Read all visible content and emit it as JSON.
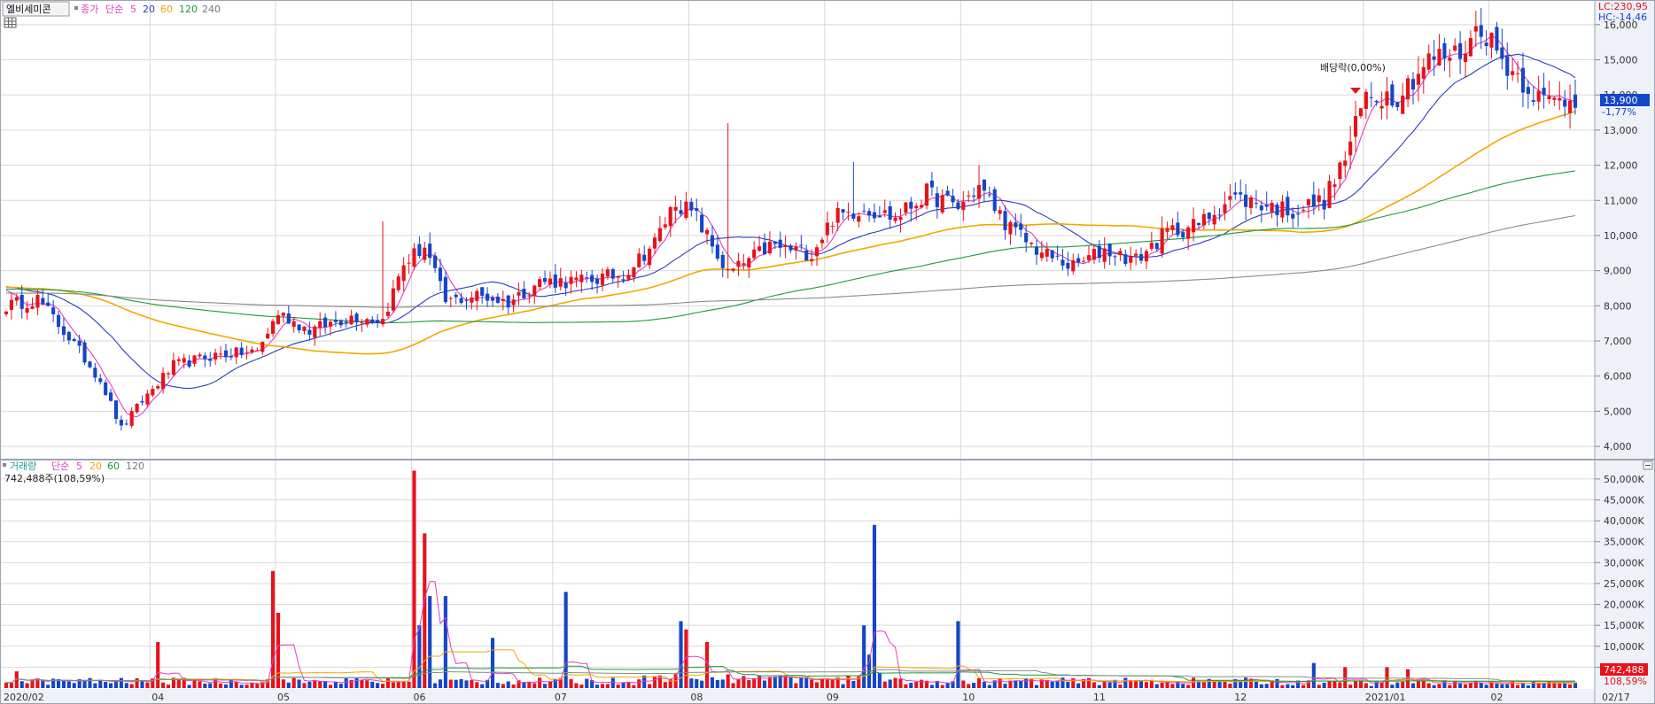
{
  "header": {
    "stock_name": "엘비세미콘",
    "price_legend": {
      "label": "종가",
      "kind": "단순",
      "periods": [
        "5",
        "20",
        "60",
        "120",
        "240"
      ]
    },
    "right_info": {
      "lc": "LC:230,95",
      "hc": "HC:-14,46"
    },
    "current_price": "13,900",
    "change_pct": "-1,77%",
    "annotation": "배당락(0,00%)"
  },
  "volume_panel": {
    "legend": {
      "label": "거래량",
      "kind": "단순",
      "periods": [
        "5",
        "20",
        "60",
        "120"
      ]
    },
    "info": "742,488주(108,59%)",
    "current_volume": "742,488",
    "current_pct": "108,59%"
  },
  "colors": {
    "up": "#e8121b",
    "down": "#1446c8",
    "ma5": "#e040c8",
    "ma20": "#2b3cc0",
    "ma60": "#f0a800",
    "ma120": "#1a9a3a",
    "ma240": "#8a8a8a",
    "grid": "#d8d8d8",
    "axis_bg": "#eef1f7",
    "price_tag": "#1446c8",
    "vol_tag": "#e8121b"
  },
  "chart_data": [
    {
      "type": "candlestick",
      "ylim": [
        3800,
        16500
      ],
      "y_ticks": [
        "4,000",
        "5,000",
        "6,000",
        "7,000",
        "8,000",
        "9,000",
        "10,000",
        "11,000",
        "12,000",
        "13,000",
        "14,000",
        "15,000",
        "16,000"
      ],
      "y_tick_values": [
        4000,
        5000,
        6000,
        7000,
        8000,
        9000,
        10000,
        11000,
        12000,
        13000,
        14000,
        15000,
        16000
      ],
      "x_labels": [
        "2020/02",
        "04",
        "05",
        "06",
        "07",
        "08",
        "09",
        "10",
        "11",
        "12",
        "2021/01",
        "02",
        "02/17"
      ],
      "anchors": [
        [
          0,
          8000
        ],
        [
          6,
          8200
        ],
        [
          12,
          7100
        ],
        [
          18,
          5900
        ],
        [
          22,
          4500
        ],
        [
          26,
          5300
        ],
        [
          32,
          6300
        ],
        [
          40,
          6600
        ],
        [
          48,
          6700
        ],
        [
          52,
          7800
        ],
        [
          58,
          7300
        ],
        [
          66,
          7700
        ],
        [
          72,
          7600
        ],
        [
          76,
          9200
        ],
        [
          80,
          9700
        ],
        [
          84,
          8100
        ],
        [
          90,
          8300
        ],
        [
          96,
          8100
        ],
        [
          102,
          8700
        ],
        [
          110,
          8700
        ],
        [
          118,
          8900
        ],
        [
          124,
          9800
        ],
        [
          128,
          11000
        ],
        [
          132,
          10500
        ],
        [
          138,
          8900
        ],
        [
          146,
          9700
        ],
        [
          154,
          9500
        ],
        [
          158,
          10500
        ],
        [
          164,
          10800
        ],
        [
          170,
          10500
        ],
        [
          176,
          11200
        ],
        [
          182,
          10800
        ],
        [
          186,
          11400
        ],
        [
          192,
          10200
        ],
        [
          198,
          9500
        ],
        [
          204,
          9100
        ],
        [
          210,
          9600
        ],
        [
          216,
          9300
        ],
        [
          222,
          10100
        ],
        [
          228,
          10300
        ],
        [
          234,
          11100
        ],
        [
          240,
          10900
        ],
        [
          246,
          10700
        ],
        [
          252,
          11000
        ],
        [
          256,
          12200
        ],
        [
          260,
          14000
        ],
        [
          266,
          14000
        ],
        [
          272,
          15000
        ],
        [
          278,
          15200
        ],
        [
          282,
          16000
        ],
        [
          286,
          15000
        ],
        [
          290,
          14400
        ],
        [
          294,
          13800
        ],
        [
          300,
          13900
        ]
      ],
      "spikes": [
        [
          162,
          12100
        ],
        [
          186,
          12000
        ],
        [
          72,
          10400
        ],
        [
          138,
          13200
        ]
      ],
      "ma_periods": [
        5,
        20,
        60,
        120,
        240
      ]
    },
    {
      "type": "bar",
      "name": "volume",
      "ylim": [
        0,
        54000
      ],
      "y_ticks": [
        "5,000K",
        "10,000K",
        "15,000K",
        "20,000K",
        "25,000K",
        "30,000K",
        "35,000K",
        "40,000K",
        "45,000K",
        "50,000K"
      ],
      "y_tick_values": [
        5000,
        10000,
        15000,
        20000,
        25000,
        30000,
        35000,
        40000,
        45000,
        50000
      ],
      "spikes": [
        [
          2,
          4000
        ],
        [
          29,
          11000
        ],
        [
          51,
          28000
        ],
        [
          52,
          18000
        ],
        [
          78,
          52000
        ],
        [
          79,
          15000
        ],
        [
          80,
          37000
        ],
        [
          81,
          22000
        ],
        [
          84,
          22000
        ],
        [
          93,
          12000
        ],
        [
          107,
          23000
        ],
        [
          129,
          16000
        ],
        [
          130,
          14000
        ],
        [
          134,
          11000
        ],
        [
          164,
          15000
        ],
        [
          166,
          39000
        ],
        [
          165,
          8000
        ],
        [
          182,
          16000
        ],
        [
          250,
          6000
        ],
        [
          256,
          5000
        ],
        [
          264,
          5000
        ],
        [
          268,
          4500
        ]
      ]
    }
  ]
}
